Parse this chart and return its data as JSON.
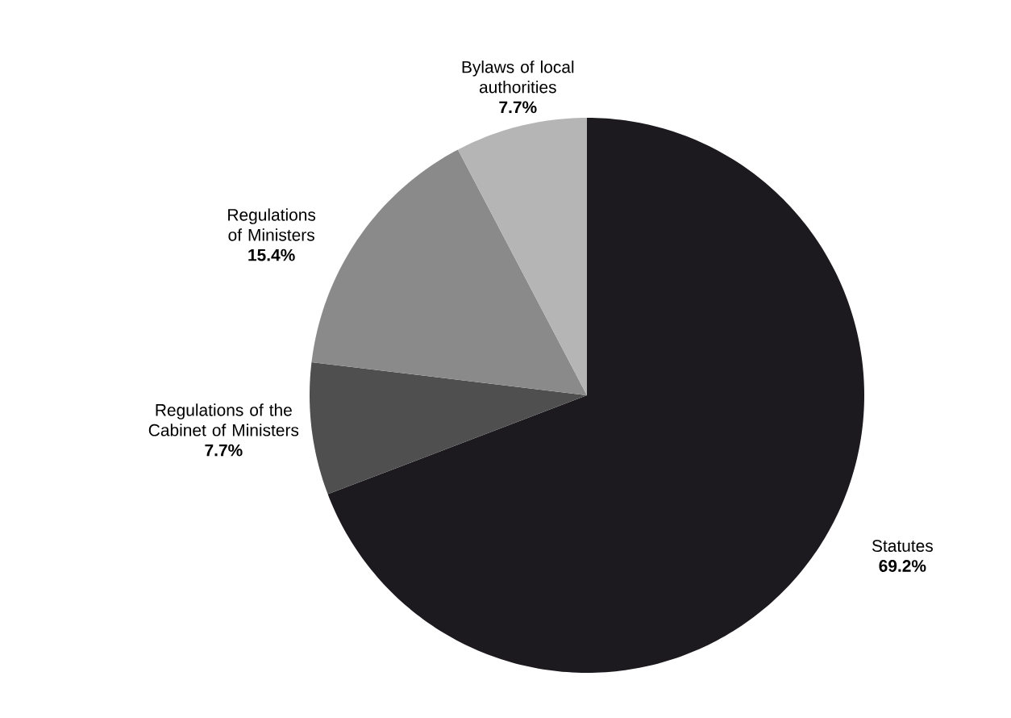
{
  "chart_data": {
    "type": "pie",
    "categories": [
      "Statutes",
      "Regulations of the Cabinet of Ministers",
      "Regulations of Ministers",
      "Bylaws of local authorities"
    ],
    "values": [
      69.2,
      7.7,
      15.4,
      7.7
    ],
    "value_labels": [
      "69.2%",
      "7.7%",
      "15.4%",
      "7.7%"
    ],
    "colors": [
      "#1c1a1f",
      "#4f4f4f",
      "#8a8a8a",
      "#b5b5b5"
    ]
  }
}
